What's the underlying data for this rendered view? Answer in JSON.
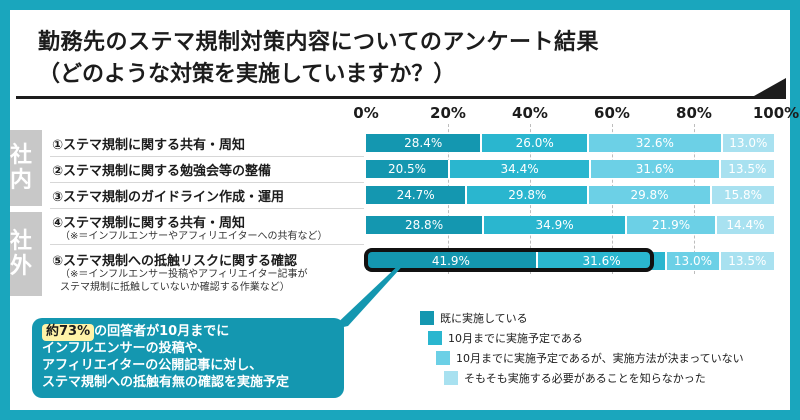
{
  "title": "勤務先のステマ規制対策内容についてのアンケート結果",
  "subtitle": "（どのような対策を実施していますか？）",
  "groups": [
    {
      "label": "社内"
    },
    {
      "label": "社外"
    }
  ],
  "rows": [
    {
      "label": "①ステマ規制に関する共有・周知",
      "note": ""
    },
    {
      "label": "②ステマ規制に関する勉強会等の整備",
      "note": ""
    },
    {
      "label": "③ステマ規制のガイドライン作成・運用",
      "note": ""
    },
    {
      "label": "④ステマ規制に関する共有・周知",
      "note": "（※＝インフルエンサーやアフィリエイターへの共有など）"
    },
    {
      "label": "⑤ステマ規制への抵触リスクに関する確認",
      "note": "（※＝インフルエンサー投稿やアフィリエイター記事が",
      "note2": "ステマ規制に抵触していないか確認する作業など）"
    }
  ],
  "chart_data": {
    "type": "bar",
    "orientation": "horizontal",
    "stacked": true,
    "title": "勤務先のステマ規制対策内容についてのアンケート結果",
    "categories": [
      "①ステマ規制に関する共有・周知",
      "②ステマ規制に関する勉強会等の整備",
      "③ステマ規制のガイドライン作成・運用",
      "④ステマ規制に関する共有・周知",
      "⑤ステマ規制への抵触リスクに関する確認"
    ],
    "series": [
      {
        "name": "既に実施している",
        "color": "#1497b0",
        "values": [
          28.4,
          20.5,
          24.7,
          28.8,
          41.9
        ]
      },
      {
        "name": "10月までに実施予定である",
        "color": "#2ab6cf",
        "values": [
          26.0,
          34.4,
          29.8,
          34.9,
          31.6
        ]
      },
      {
        "name": "10月までに実施予定であるが、実施方法が決まっていない",
        "color": "#6cd0e6",
        "values": [
          32.6,
          31.6,
          29.8,
          21.9,
          13.0
        ]
      },
      {
        "name": "そもそも実施する必要があることを知らなかった",
        "color": "#a8e1f0",
        "values": [
          13.0,
          13.5,
          15.8,
          14.4,
          13.5
        ]
      }
    ],
    "xlim": [
      0,
      100
    ],
    "ticks": [
      "0%",
      "20%",
      "40%",
      "60%",
      "80%",
      "100%"
    ],
    "value_suffix": "%",
    "highlight_row": 4,
    "legend_position": "bottom-right"
  },
  "callout": {
    "badge": "約73%",
    "line1_suffix": "の回答者が10月までに",
    "line2": "インフルエンサーの投稿や、",
    "line3": "アフィリエイターの公開記事に対し、",
    "line4": "ステマ規制への抵触有無の確認を実施予定"
  }
}
